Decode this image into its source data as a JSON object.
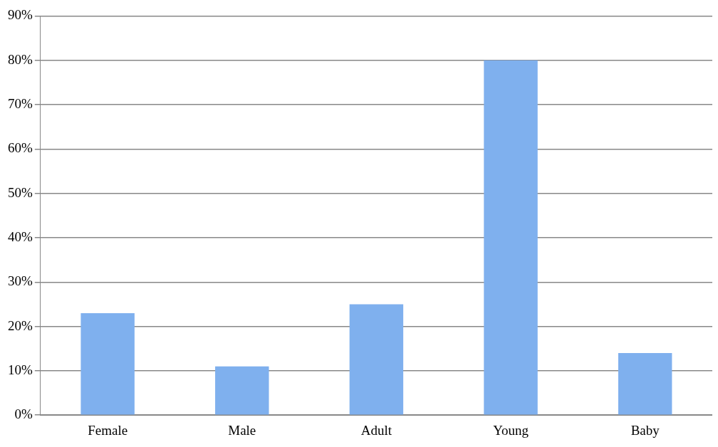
{
  "chart_data": {
    "type": "bar",
    "categories": [
      "Female",
      "Male",
      "Adult",
      "Young",
      "Baby"
    ],
    "values": [
      23,
      11,
      25,
      80,
      14
    ],
    "color": "#7fb0ee",
    "ylim": [
      0,
      90
    ],
    "yticks": [
      {
        "value": 0,
        "label": "0%"
      },
      {
        "value": 10,
        "label": "10%"
      },
      {
        "value": 20,
        "label": "20%"
      },
      {
        "value": 30,
        "label": "30%"
      },
      {
        "value": 40,
        "label": "40%"
      },
      {
        "value": 50,
        "label": "50%"
      },
      {
        "value": 60,
        "label": "60%"
      },
      {
        "value": 70,
        "label": "70%"
      },
      {
        "value": 80,
        "label": "80%"
      },
      {
        "value": 90,
        "label": "90%"
      }
    ],
    "grid": "y",
    "legend": false
  }
}
